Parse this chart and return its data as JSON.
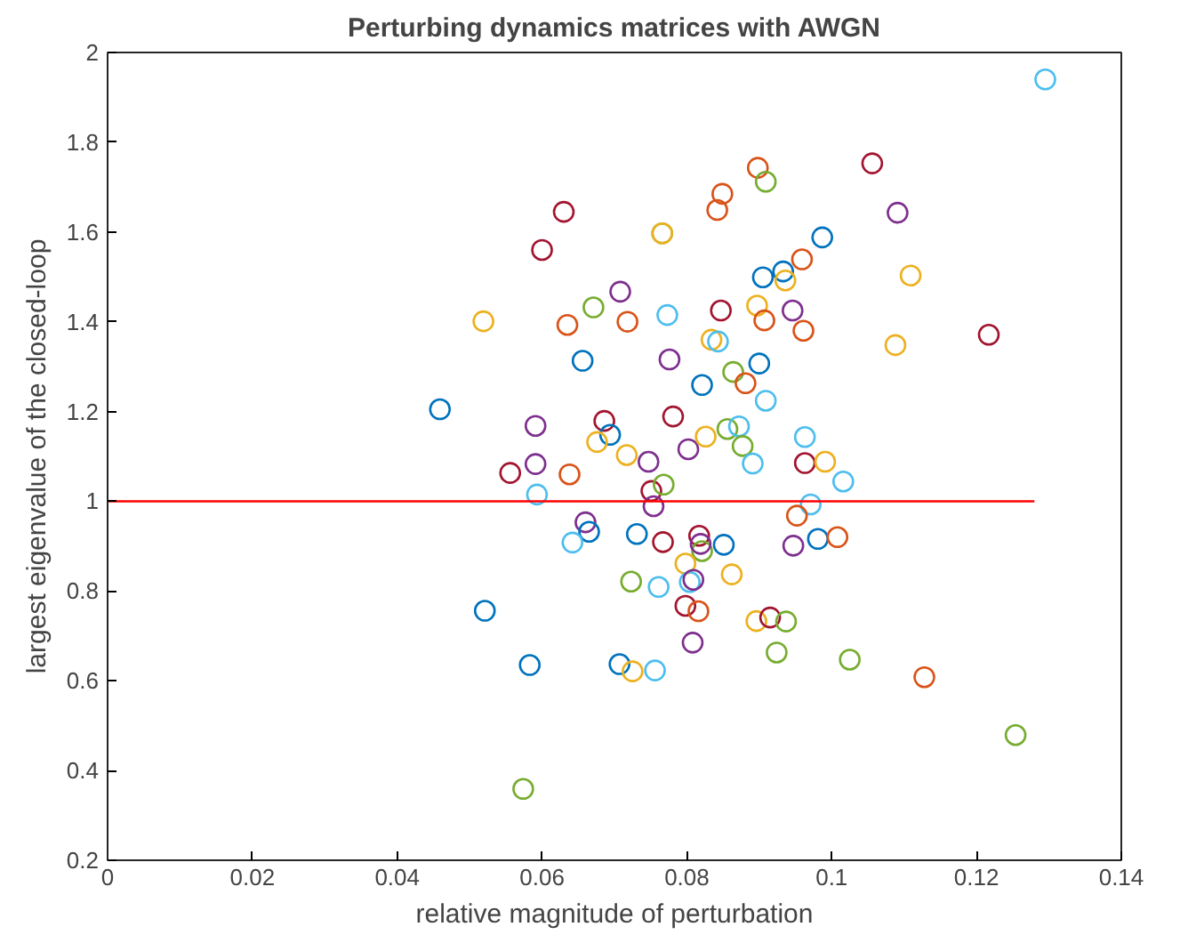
{
  "chart_data": {
    "type": "scatter",
    "title": "Perturbing dynamics matrices with AWGN",
    "xlabel": "relative magnitude of perturbation",
    "ylabel": "largest eigenvalue of the closed-loop",
    "xlim": [
      0,
      0.14
    ],
    "ylim": [
      0.2,
      2
    ],
    "xticks": [
      0,
      0.02,
      0.04,
      0.06,
      0.08,
      0.1,
      0.12,
      0.14
    ],
    "yticks": [
      0.2,
      0.4,
      0.6,
      0.8,
      1,
      1.2,
      1.4,
      1.6,
      1.8,
      2
    ],
    "grid": false,
    "series": [
      {
        "marker": "circle",
        "x": [
          0.0898,
          0.0909,
          0.0849,
          0.0842,
          0.063,
          0.06,
          0.0766,
          0.0766,
          0.0933,
          0.0905,
          0.0936,
          0.0708,
          0.0671,
          0.0519,
          0.0635,
          0.0718,
          0.0773,
          0.0847,
          0.0897,
          0.0907,
          0.0946,
          0.0656,
          0.0776,
          0.0834,
          0.0843,
          0.0864,
          0.0881,
          0.0821,
          0.09,
          0.0909,
          0.0459,
          0.0591,
          0.0686,
          0.0694,
          0.0781,
          0.0676,
          0.0717,
          0.0747,
          0.0802,
          0.0826,
          0.0856,
          0.0872,
          0.0877,
          0.0891,
          0.0556,
          0.0591,
          0.0638,
          0.1295,
          0.1056,
          0.1091,
          0.0987,
          0.0959,
          0.1109,
          0.0961,
          0.1088,
          0.1217,
          0.0963,
          0.0963,
          0.0991,
          0.1016,
          0.0593,
          0.0751,
          0.0768,
          0.0754,
          0.066,
          0.0665,
          0.0642,
          0.0731,
          0.0767,
          0.0817,
          0.0821,
          0.0819,
          0.0851,
          0.0798,
          0.0862,
          0.0723,
          0.0761,
          0.0804,
          0.0809,
          0.0798,
          0.0816,
          0.0521,
          0.0808,
          0.0583,
          0.0707,
          0.0725,
          0.0756,
          0.0574,
          0.0896,
          0.0915,
          0.0924,
          0.0937,
          0.0971,
          0.0952,
          0.0981,
          0.1008,
          0.0947,
          0.1025,
          0.1128,
          0.1254
        ],
        "values": [
          1.743,
          1.712,
          1.685,
          1.649,
          1.645,
          1.56,
          1.597,
          1.597,
          1.512,
          1.499,
          1.492,
          1.467,
          1.432,
          1.401,
          1.393,
          1.4,
          1.415,
          1.425,
          1.436,
          1.403,
          1.425,
          1.313,
          1.316,
          1.36,
          1.356,
          1.288,
          1.263,
          1.259,
          1.307,
          1.224,
          1.205,
          1.168,
          1.179,
          1.148,
          1.189,
          1.132,
          1.103,
          1.088,
          1.116,
          1.144,
          1.161,
          1.167,
          1.123,
          1.084,
          1.063,
          1.083,
          1.06,
          1.94,
          1.753,
          1.643,
          1.588,
          1.539,
          1.503,
          1.38,
          1.348,
          1.371,
          1.143,
          1.085,
          1.088,
          1.044,
          1.015,
          1.023,
          1.037,
          0.989,
          0.953,
          0.932,
          0.908,
          0.927,
          0.909,
          0.923,
          0.889,
          0.905,
          0.903,
          0.861,
          0.837,
          0.821,
          0.809,
          0.82,
          0.825,
          0.767,
          0.755,
          0.756,
          0.685,
          0.635,
          0.637,
          0.621,
          0.623,
          0.359,
          0.733,
          0.741,
          0.663,
          0.732,
          0.993,
          0.968,
          0.916,
          0.92,
          0.901,
          0.647,
          0.608,
          0.479
        ],
        "colors": [
          "#d95319",
          "#77ac30",
          "#d95319",
          "#d95319",
          "#a2142f",
          "#a2142f",
          "#77ac30",
          "#edb120",
          "#0072bd",
          "#0072bd",
          "#edb120",
          "#7e2f8e",
          "#77ac30",
          "#edb120",
          "#d95319",
          "#d95319",
          "#4dbeee",
          "#a2142f",
          "#edb120",
          "#d95319",
          "#7e2f8e",
          "#0072bd",
          "#7e2f8e",
          "#edb120",
          "#4dbeee",
          "#77ac30",
          "#d95319",
          "#0072bd",
          "#0072bd",
          "#4dbeee",
          "#0072bd",
          "#7e2f8e",
          "#a2142f",
          "#0072bd",
          "#a2142f",
          "#edb120",
          "#edb120",
          "#7e2f8e",
          "#7e2f8e",
          "#edb120",
          "#77ac30",
          "#4dbeee",
          "#77ac30",
          "#4dbeee",
          "#a2142f",
          "#7e2f8e",
          "#d95319",
          "#4dbeee",
          "#a2142f",
          "#7e2f8e",
          "#0072bd",
          "#d95319",
          "#edb120",
          "#d95319",
          "#edb120",
          "#a2142f",
          "#4dbeee",
          "#a2142f",
          "#edb120",
          "#4dbeee",
          "#4dbeee",
          "#a2142f",
          "#77ac30",
          "#7e2f8e",
          "#7e2f8e",
          "#0072bd",
          "#4dbeee",
          "#0072bd",
          "#a2142f",
          "#a2142f",
          "#77ac30",
          "#7e2f8e",
          "#0072bd",
          "#edb120",
          "#edb120",
          "#77ac30",
          "#4dbeee",
          "#4dbeee",
          "#7e2f8e",
          "#a2142f",
          "#d95319",
          "#0072bd",
          "#7e2f8e",
          "#0072bd",
          "#0072bd",
          "#edb120",
          "#4dbeee",
          "#77ac30",
          "#edb120",
          "#a2142f",
          "#77ac30",
          "#77ac30",
          "#4dbeee",
          "#d95319",
          "#0072bd",
          "#d95319",
          "#7e2f8e",
          "#77ac30",
          "#d95319",
          "#77ac30"
        ]
      },
      {
        "type": "line",
        "x": [
          0,
          0.128
        ],
        "values": [
          1,
          1
        ],
        "color": "#ff0000"
      }
    ]
  }
}
